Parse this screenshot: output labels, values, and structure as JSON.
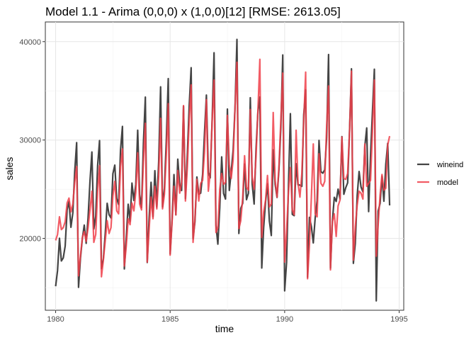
{
  "chart_data": {
    "type": "line",
    "title": "Model 1.1 - Arima (0,0,0) x (1,0,0)[12] [RMSE: 2613.05]",
    "xlabel": "time",
    "ylabel": "sales",
    "xlim": [
      1979.55,
      1995.2
    ],
    "ylim": [
      12700,
      42000
    ],
    "xticks": [
      1980,
      1985,
      1990,
      1995
    ],
    "xtick_labels": [
      "1980",
      "1985",
      "1990",
      "1995"
    ],
    "yticks": [
      20000,
      30000,
      40000
    ],
    "ytick_labels": [
      "20000",
      "30000",
      "40000"
    ],
    "grid": true,
    "legend": "right",
    "series": [
      {
        "name": "wineind",
        "color": "#3a3a3a",
        "x": [
          1980.0,
          1980.083,
          1980.167,
          1980.25,
          1980.333,
          1980.417,
          1980.5,
          1980.583,
          1980.667,
          1980.75,
          1980.833,
          1980.917,
          1981.0,
          1981.083,
          1981.167,
          1981.25,
          1981.333,
          1981.417,
          1981.5,
          1981.583,
          1981.667,
          1981.75,
          1981.833,
          1981.917,
          1982.0,
          1982.083,
          1982.167,
          1982.25,
          1982.333,
          1982.417,
          1982.5,
          1982.583,
          1982.667,
          1982.75,
          1982.833,
          1982.917,
          1983.0,
          1983.083,
          1983.167,
          1983.25,
          1983.333,
          1983.417,
          1983.5,
          1983.583,
          1983.667,
          1983.75,
          1983.833,
          1983.917,
          1984.0,
          1984.083,
          1984.167,
          1984.25,
          1984.333,
          1984.417,
          1984.5,
          1984.583,
          1984.667,
          1984.75,
          1984.833,
          1984.917,
          1985.0,
          1985.083,
          1985.167,
          1985.25,
          1985.333,
          1985.417,
          1985.5,
          1985.583,
          1985.667,
          1985.75,
          1985.833,
          1985.917,
          1986.0,
          1986.083,
          1986.167,
          1986.25,
          1986.333,
          1986.417,
          1986.5,
          1986.583,
          1986.667,
          1986.75,
          1986.833,
          1986.917,
          1987.0,
          1987.083,
          1987.167,
          1987.25,
          1987.333,
          1987.417,
          1987.5,
          1987.583,
          1987.667,
          1987.75,
          1987.833,
          1987.917,
          1988.0,
          1988.083,
          1988.167,
          1988.25,
          1988.333,
          1988.417,
          1988.5,
          1988.583,
          1988.667,
          1988.75,
          1988.833,
          1988.917,
          1989.0,
          1989.083,
          1989.167,
          1989.25,
          1989.333,
          1989.417,
          1989.5,
          1989.583,
          1989.667,
          1989.75,
          1989.833,
          1989.917,
          1990.0,
          1990.083,
          1990.167,
          1990.25,
          1990.333,
          1990.417,
          1990.5,
          1990.583,
          1990.667,
          1990.75,
          1990.833,
          1990.917,
          1991.0,
          1991.083,
          1991.167,
          1991.25,
          1991.333,
          1991.417,
          1991.5,
          1991.583,
          1991.667,
          1991.75,
          1991.833,
          1991.917,
          1992.0,
          1992.083,
          1992.167,
          1992.25,
          1992.333,
          1992.417,
          1992.5,
          1992.583,
          1992.667,
          1992.75,
          1992.833,
          1992.917,
          1993.0,
          1993.083,
          1993.167,
          1993.25,
          1993.333,
          1993.417,
          1993.5,
          1993.583,
          1993.667,
          1993.75,
          1993.833,
          1993.917,
          1994.0,
          1994.083,
          1994.167,
          1994.25,
          1994.333,
          1994.417,
          1994.5,
          1994.583
        ],
        "values": [
          15136,
          16733,
          20016,
          17708,
          18019,
          19227,
          22893,
          23739,
          21133,
          22591,
          26786,
          29740,
          15028,
          17977,
          20008,
          21354,
          19498,
          22125,
          25817,
          28779,
          20960,
          22254,
          27392,
          29945,
          16933,
          17892,
          20533,
          23569,
          22417,
          22084,
          26580,
          27454,
          24081,
          23451,
          28991,
          31386,
          16896,
          20045,
          23471,
          21747,
          25621,
          23859,
          25500,
          30998,
          24475,
          23145,
          29701,
          34365,
          17556,
          22077,
          25702,
          22214,
          26886,
          23191,
          27831,
          35406,
          23195,
          25110,
          30009,
          36242,
          18450,
          21845,
          26488,
          22394,
          28057,
          25451,
          24872,
          33424,
          24052,
          28449,
          33533,
          37351,
          19969,
          21701,
          26249,
          24493,
          24603,
          26485,
          30723,
          34569,
          26689,
          26157,
          32064,
          38870,
          21337,
          19419,
          23166,
          28286,
          24570,
          24001,
          33151,
          24878,
          26804,
          28967,
          33311,
          40226,
          20504,
          23060,
          23562,
          27562,
          23940,
          24584,
          34303,
          25517,
          23494,
          29095,
          32903,
          34379,
          16991,
          21109,
          23740,
          25552,
          21752,
          20294,
          29009,
          25500,
          24166,
          26960,
          31222,
          38641,
          14672,
          17543,
          25453,
          32683,
          22449,
          22316,
          27595,
          25451,
          25421,
          25288,
          32568,
          35110,
          16052,
          22146,
          21198,
          19543,
          22084,
          23816,
          29961,
          26773,
          26635,
          26972,
          30207,
          38687,
          16974,
          21697,
          24179,
          23757,
          25013,
          24019,
          30345,
          24488,
          25156,
          25650,
          30923,
          37240,
          17466,
          19463,
          24352,
          26805,
          25236,
          24735,
          29356,
          31234,
          22724,
          28496,
          32857,
          37198,
          13652,
          22784,
          23565,
          26323,
          23779,
          27549,
          29660,
          23356
        ]
      },
      {
        "name": "model",
        "color": "#f0404a",
        "x": [
          1980.0,
          1980.083,
          1980.167,
          1980.25,
          1980.333,
          1980.417,
          1980.5,
          1980.583,
          1980.667,
          1980.75,
          1980.833,
          1980.917,
          1981.0,
          1981.083,
          1981.167,
          1981.25,
          1981.333,
          1981.417,
          1981.5,
          1981.583,
          1981.667,
          1981.75,
          1981.833,
          1981.917,
          1982.0,
          1982.083,
          1982.167,
          1982.25,
          1982.333,
          1982.417,
          1982.5,
          1982.583,
          1982.667,
          1982.75,
          1982.833,
          1982.917,
          1983.0,
          1983.083,
          1983.167,
          1983.25,
          1983.333,
          1983.417,
          1983.5,
          1983.583,
          1983.667,
          1983.75,
          1983.833,
          1983.917,
          1984.0,
          1984.083,
          1984.167,
          1984.25,
          1984.333,
          1984.417,
          1984.5,
          1984.583,
          1984.667,
          1984.75,
          1984.833,
          1984.917,
          1985.0,
          1985.083,
          1985.167,
          1985.25,
          1985.333,
          1985.417,
          1985.5,
          1985.583,
          1985.667,
          1985.75,
          1985.833,
          1985.917,
          1986.0,
          1986.083,
          1986.167,
          1986.25,
          1986.333,
          1986.417,
          1986.5,
          1986.583,
          1986.667,
          1986.75,
          1986.833,
          1986.917,
          1987.0,
          1987.083,
          1987.167,
          1987.25,
          1987.333,
          1987.417,
          1987.5,
          1987.583,
          1987.667,
          1987.75,
          1987.833,
          1987.917,
          1988.0,
          1988.083,
          1988.167,
          1988.25,
          1988.333,
          1988.417,
          1988.5,
          1988.583,
          1988.667,
          1988.75,
          1988.833,
          1988.917,
          1989.0,
          1989.083,
          1989.167,
          1989.25,
          1989.333,
          1989.417,
          1989.5,
          1989.583,
          1989.667,
          1989.75,
          1989.833,
          1989.917,
          1990.0,
          1990.083,
          1990.167,
          1990.25,
          1990.333,
          1990.417,
          1990.5,
          1990.583,
          1990.667,
          1990.75,
          1990.833,
          1990.917,
          1991.0,
          1991.083,
          1991.167,
          1991.25,
          1991.333,
          1991.417,
          1991.5,
          1991.583,
          1991.667,
          1991.75,
          1991.833,
          1991.917,
          1992.0,
          1992.083,
          1992.167,
          1992.25,
          1992.333,
          1992.417,
          1992.5,
          1992.583,
          1992.667,
          1992.75,
          1992.833,
          1992.917,
          1993.0,
          1993.083,
          1993.167,
          1993.25,
          1993.333,
          1993.417,
          1993.5,
          1993.583,
          1993.667,
          1993.75,
          1993.833,
          1993.917,
          1994.0,
          1994.083,
          1994.167,
          1994.25,
          1994.333,
          1994.417,
          1994.5,
          1994.583
        ],
        "values": [
          19800,
          20400,
          22200,
          20900,
          21100,
          21700,
          23600,
          24100,
          22700,
          23500,
          25700,
          27300,
          16200,
          18200,
          20100,
          20700,
          19700,
          21100,
          22900,
          24800,
          19600,
          20400,
          24800,
          27400,
          16100,
          17800,
          19800,
          21800,
          20500,
          21100,
          24300,
          25800,
          22800,
          22500,
          27300,
          29100,
          17200,
          19200,
          22000,
          21400,
          23600,
          22800,
          24700,
          28700,
          23500,
          22900,
          27800,
          31700,
          17600,
          21000,
          24200,
          22000,
          25300,
          23000,
          26300,
          32200,
          23000,
          24500,
          28600,
          33700,
          18300,
          21600,
          25300,
          22400,
          26900,
          24600,
          25700,
          33500,
          23800,
          27200,
          32000,
          35600,
          19600,
          22000,
          26000,
          23800,
          25600,
          25900,
          28800,
          34100,
          24800,
          26700,
          31900,
          36100,
          20600,
          21100,
          25000,
          26600,
          25500,
          25700,
          32500,
          27500,
          26100,
          28000,
          33300,
          37900,
          21000,
          21800,
          24100,
          28400,
          25200,
          24900,
          33100,
          26200,
          25000,
          28300,
          33000,
          38200,
          20100,
          22700,
          23900,
          26400,
          23200,
          23500,
          32800,
          25900,
          24200,
          27300,
          32000,
          36800,
          17600,
          20700,
          24700,
          27200,
          22900,
          22400,
          31000,
          25600,
          24200,
          26600,
          31800,
          36900,
          15900,
          19400,
          24200,
          29600,
          22500,
          22200,
          28600,
          25600,
          25300,
          25800,
          31400,
          35500,
          16800,
          21700,
          22500,
          20200,
          23300,
          23900,
          30300,
          26100,
          26000,
          26600,
          30800,
          37000,
          17800,
          21100,
          23400,
          24800,
          24600,
          24000,
          29600,
          25300,
          25600,
          25900,
          30800,
          36100,
          18200,
          21400,
          24400,
          26500,
          24900,
          25100,
          29500,
          30400
        ]
      }
    ]
  }
}
